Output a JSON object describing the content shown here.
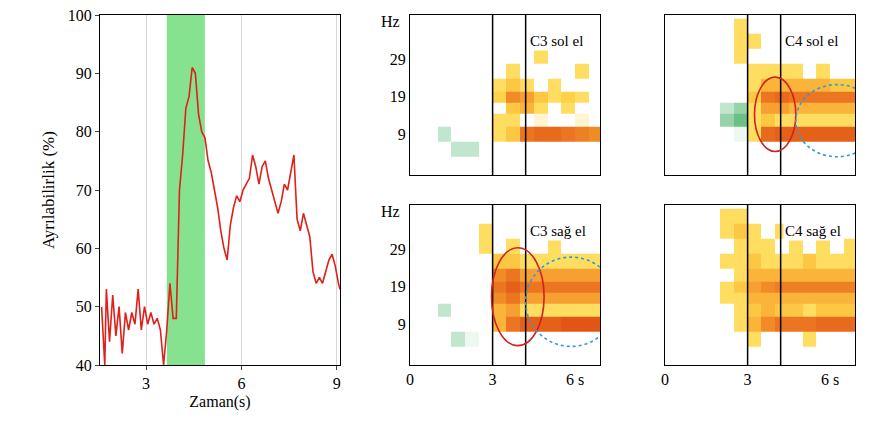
{
  "chart_data": [
    {
      "type": "line",
      "xlabel": "Zaman(s)",
      "ylabel": "Ayrılabilirlik (%)",
      "x": [
        1.6,
        1.7,
        1.75,
        1.85,
        1.95,
        2.05,
        2.15,
        2.25,
        2.35,
        2.45,
        2.55,
        2.65,
        2.75,
        2.85,
        2.95,
        3.05,
        3.15,
        3.25,
        3.35,
        3.45,
        3.55,
        3.65,
        3.75,
        3.85,
        3.95,
        4.05,
        4.15,
        4.25,
        4.35,
        4.45,
        4.55,
        4.65,
        4.75,
        4.85,
        4.95,
        5.05,
        5.15,
        5.25,
        5.35,
        5.45,
        5.55,
        5.65,
        5.75,
        5.85,
        5.95,
        6.05,
        6.15,
        6.25,
        6.35,
        6.45,
        6.55,
        6.65,
        6.75,
        6.85,
        6.95,
        7.05,
        7.15,
        7.25,
        7.35,
        7.45,
        7.55,
        7.65,
        7.75,
        7.85,
        7.95,
        8.05,
        8.15,
        8.25,
        8.35,
        8.45,
        8.55,
        8.65,
        8.75,
        8.85,
        8.95,
        9.05,
        9.1
      ],
      "values": [
        50,
        40,
        53,
        44,
        52,
        45,
        50,
        42,
        49,
        46,
        49,
        47,
        53,
        46,
        50,
        47,
        49,
        47,
        48,
        46,
        40,
        46,
        54,
        48,
        48,
        70,
        76,
        84,
        86,
        91,
        90,
        83,
        80,
        79,
        75,
        73,
        70,
        67,
        63,
        60,
        58,
        64,
        67,
        69,
        68,
        70,
        71,
        72,
        76,
        74,
        71,
        74,
        75,
        72,
        70,
        68,
        66,
        68,
        71,
        70,
        73,
        76,
        65,
        63,
        66,
        64,
        62,
        56,
        54,
        55,
        54,
        56,
        58,
        59,
        57,
        54,
        53
      ],
      "color": "#e0201a",
      "xlim": [
        1.55,
        9.1
      ],
      "xticks": [
        3,
        6,
        9
      ],
      "ylim": [
        40,
        100
      ],
      "yticks": [
        40,
        50,
        60,
        70,
        80,
        90,
        100
      ],
      "grid": true,
      "shaded": {
        "x": [
          3.65,
          4.85
        ],
        "color": "#86e28e"
      }
    },
    {
      "type": "heatmap",
      "title": "C3 sol el",
      "ylabel": "Hz",
      "tick_labels": "y",
      "x": [
        0.25,
        0.75,
        1.25,
        1.75,
        2.25,
        2.75,
        3.25,
        3.75,
        4.25,
        4.75,
        5.25,
        5.75,
        6.25,
        6.75
      ],
      "y": [
        1,
        5,
        9,
        13,
        16,
        19,
        22,
        26,
        30,
        34,
        38
      ],
      "z": [
        [
          0,
          0,
          0,
          0,
          0,
          0,
          0,
          0,
          0,
          0,
          0,
          0,
          0,
          0
        ],
        [
          0,
          0,
          0,
          -0.3,
          -0.3,
          0,
          0,
          0,
          0,
          0,
          0,
          0,
          0,
          0
        ],
        [
          0,
          0,
          -0.3,
          0,
          0,
          0,
          0.3,
          0.4,
          0.8,
          0.85,
          0.85,
          0.8,
          0.75,
          0.7
        ],
        [
          0,
          0,
          0,
          0,
          0,
          0,
          0.3,
          0.3,
          0,
          0.2,
          0,
          0,
          0.2,
          0
        ],
        [
          0,
          0,
          0,
          0,
          0,
          0,
          0,
          0.4,
          0.5,
          0.3,
          0,
          0.3,
          0,
          0
        ],
        [
          0,
          0,
          0,
          0,
          0,
          0,
          0.35,
          0.7,
          0.6,
          0.4,
          0.3,
          0.35,
          0.3,
          0
        ],
        [
          0,
          0,
          0,
          0,
          0,
          0,
          0.3,
          0.4,
          0.3,
          0,
          0.3,
          0,
          0,
          0
        ],
        [
          0,
          0,
          0,
          0,
          0,
          0,
          0,
          0.3,
          0,
          0,
          0,
          0,
          0.3,
          0
        ],
        [
          0,
          0,
          0,
          0,
          0,
          0,
          0,
          0,
          0,
          0.3,
          0,
          0,
          0,
          0
        ],
        [
          0,
          0,
          0,
          0,
          0,
          0,
          0,
          0,
          0,
          0,
          0,
          0,
          0,
          0
        ],
        [
          0,
          0,
          0,
          0,
          0,
          0,
          0,
          0,
          0,
          0,
          0,
          0,
          0,
          0
        ]
      ],
      "zlim": [
        -1,
        1
      ],
      "xlim": [
        0,
        6.9
      ],
      "ylim": [
        -2,
        41
      ],
      "yticks": [
        9,
        19,
        29
      ],
      "vlines": [
        3,
        4.2
      ]
    },
    {
      "type": "heatmap",
      "title": "C4 sol el",
      "tick_labels": false,
      "x": [
        0.25,
        0.75,
        1.25,
        1.75,
        2.25,
        2.75,
        3.25,
        3.75,
        4.25,
        4.75,
        5.25,
        5.75,
        6.25,
        6.75
      ],
      "y": [
        1,
        5,
        9,
        13,
        16,
        19,
        22,
        26,
        30,
        34,
        38
      ],
      "z": [
        [
          0,
          0,
          0,
          0,
          0,
          0,
          0,
          0,
          0,
          0,
          0,
          0,
          0,
          0
        ],
        [
          0,
          0,
          0,
          0,
          0,
          0,
          0,
          0,
          0,
          0,
          0,
          0,
          0,
          0
        ],
        [
          0,
          0,
          0,
          0,
          0,
          -0.2,
          0.3,
          0.85,
          0.9,
          0.9,
          0.9,
          0.9,
          0.9,
          0.9
        ],
        [
          0,
          0,
          0,
          0,
          -0.4,
          -0.5,
          0.3,
          0.4,
          0.3,
          0.3,
          0.3,
          0.3,
          0.3,
          0.3
        ],
        [
          0,
          0,
          0,
          0,
          -0.3,
          -0.4,
          0.3,
          0.6,
          0.6,
          0.5,
          0.5,
          0.5,
          0.5,
          0.5
        ],
        [
          0,
          0,
          0,
          0,
          0,
          0,
          0.4,
          0.8,
          0.85,
          0.8,
          0.8,
          0.8,
          0.8,
          0.8
        ],
        [
          0,
          0,
          0,
          0,
          0,
          0,
          0.3,
          0.5,
          0.5,
          0.5,
          0.5,
          0.5,
          0.4,
          0.4
        ],
        [
          0,
          0,
          0,
          0,
          0,
          0,
          0.3,
          0.3,
          0.3,
          0.3,
          0,
          0.3,
          0,
          0
        ],
        [
          0,
          0,
          0,
          0,
          0,
          0.3,
          0,
          0,
          0,
          0,
          0,
          0,
          0,
          0
        ],
        [
          0,
          0,
          0,
          0,
          0,
          0.3,
          0.3,
          0,
          0,
          0,
          0,
          0,
          0,
          0
        ],
        [
          0,
          0,
          0,
          0,
          0,
          0.3,
          0,
          0,
          0,
          0,
          0,
          0,
          0,
          0
        ]
      ],
      "zlim": [
        -1,
        1
      ],
      "xlim": [
        0,
        6.9
      ],
      "ylim": [
        -2,
        41
      ],
      "vlines": [
        3,
        4.2
      ],
      "regions": [
        {
          "x": [
            3.25,
            4.75
          ],
          "y": [
            4.3,
            24.3
          ],
          "color": "#d42020",
          "line_style": "solid"
        },
        {
          "x": [
            4.75,
            7.75
          ],
          "y": [
            2.9,
            22.3
          ],
          "color": "#3399dd",
          "line_style": "dot"
        }
      ]
    },
    {
      "type": "heatmap",
      "title": "C3 sağ el",
      "ylabel": "Hz",
      "x": [
        0.25,
        0.75,
        1.25,
        1.75,
        2.25,
        2.75,
        3.25,
        3.75,
        4.25,
        4.75,
        5.25,
        5.75,
        6.25,
        6.75
      ],
      "y": [
        1,
        5,
        9,
        13,
        16,
        19,
        22,
        26,
        30,
        34,
        38
      ],
      "z": [
        [
          0,
          0,
          0,
          0,
          0,
          0,
          0,
          0,
          0,
          0,
          0,
          0,
          0,
          0
        ],
        [
          0,
          0,
          0,
          -0.3,
          -0.2,
          0,
          0,
          0,
          0,
          0,
          0,
          0,
          0,
          0
        ],
        [
          0,
          0,
          0,
          0,
          0,
          0,
          0.5,
          0.8,
          0.9,
          0.9,
          0.9,
          0.95,
          0.95,
          0.95
        ],
        [
          0,
          0,
          -0.3,
          0,
          0,
          0,
          0.5,
          0.6,
          0.3,
          0.3,
          0.3,
          0.3,
          0.3,
          0.3
        ],
        [
          0,
          0,
          0,
          0,
          0,
          0,
          0.7,
          0.8,
          0.6,
          0.6,
          0.6,
          0.6,
          0.6,
          0.6
        ],
        [
          0,
          0,
          0,
          0,
          0,
          0,
          0.8,
          0.9,
          0.8,
          0.8,
          0.8,
          0.8,
          0.8,
          0.8
        ],
        [
          0,
          0,
          0,
          0,
          0,
          0,
          0.7,
          0.8,
          0.6,
          0.6,
          0.6,
          0.6,
          0.6,
          0.6
        ],
        [
          0,
          0,
          0,
          0,
          0,
          0,
          0.4,
          0.4,
          0.3,
          0.3,
          0.3,
          0.3,
          0.3,
          0.3
        ],
        [
          0,
          0,
          0,
          0,
          0,
          0.3,
          0,
          0.3,
          0,
          0,
          0.3,
          0,
          0,
          0
        ],
        [
          0,
          0,
          0,
          0,
          0,
          0.3,
          0,
          0,
          0,
          0,
          0,
          0,
          0,
          0
        ],
        [
          0,
          0,
          0,
          0,
          0,
          0,
          0,
          0,
          0,
          0,
          0,
          0,
          0,
          0
        ]
      ],
      "zlim": [
        -1,
        1
      ],
      "xlim": [
        0,
        6.9
      ],
      "ylim": [
        -2,
        41
      ],
      "xticks": [
        0,
        3,
        {
          "value": 6,
          "label": "6 s"
        }
      ],
      "yticks": [
        9,
        19,
        29
      ],
      "vlines": [
        3,
        4.2
      ],
      "regions": [
        {
          "x": [
            2.96,
            4.87
          ],
          "y": [
            3.2,
            29.5
          ],
          "color": "#d42020",
          "line_style": "solid"
        },
        {
          "x": [
            4.2,
            7.5
          ],
          "y": [
            3,
            27
          ],
          "color": "#3399dd",
          "line_style": "dot"
        }
      ]
    },
    {
      "type": "heatmap",
      "title": "C4 sağ el",
      "tick_labels": "x",
      "x": [
        0.25,
        0.75,
        1.25,
        1.75,
        2.25,
        2.75,
        3.25,
        3.75,
        4.25,
        4.75,
        5.25,
        5.75,
        6.25,
        6.75
      ],
      "y": [
        1,
        5,
        9,
        13,
        16,
        19,
        22,
        26,
        30,
        34,
        38
      ],
      "z": [
        [
          0,
          0,
          0,
          0,
          0,
          0,
          0,
          0,
          0,
          0,
          0,
          0,
          0,
          0
        ],
        [
          0,
          0,
          0,
          0,
          0,
          0,
          0.3,
          0,
          0,
          0,
          0.3,
          0,
          0,
          0
        ],
        [
          0,
          0,
          0,
          0,
          0,
          0.3,
          0.5,
          0.7,
          0.8,
          0.8,
          0.8,
          0.85,
          0.85,
          0.85
        ],
        [
          0,
          0,
          0,
          0,
          0,
          0.3,
          0.4,
          0.5,
          0.4,
          0.4,
          0.3,
          0.4,
          0.4,
          0.4
        ],
        [
          0,
          0,
          0,
          0,
          0.3,
          0.3,
          0.5,
          0.5,
          0.5,
          0.5,
          0.5,
          0.5,
          0.5,
          0.5
        ],
        [
          0,
          0,
          0,
          0,
          0.3,
          0.4,
          0.6,
          0.7,
          0.75,
          0.75,
          0.75,
          0.75,
          0.75,
          0.75
        ],
        [
          0,
          0,
          0,
          0,
          0,
          0.3,
          0.5,
          0.5,
          0.5,
          0.5,
          0.5,
          0.5,
          0.5,
          0.5
        ],
        [
          0,
          0,
          0,
          0,
          0.3,
          0.3,
          0.4,
          0.3,
          0.3,
          0.3,
          0.4,
          0.3,
          0.3,
          0.3
        ],
        [
          0,
          0,
          0,
          0,
          0,
          0.3,
          0.3,
          0.3,
          0,
          0.3,
          0,
          0.3,
          0,
          0.3
        ],
        [
          0,
          0,
          0,
          0,
          0.3,
          0.4,
          0.3,
          0,
          0.3,
          0,
          0,
          0,
          0,
          0
        ],
        [
          0,
          0,
          0,
          0,
          0.3,
          0.3,
          0,
          0,
          0,
          0,
          0,
          0,
          0,
          0
        ]
      ],
      "zlim": [
        -1,
        1
      ],
      "xlim": [
        0,
        6.9
      ],
      "ylim": [
        -2,
        41
      ],
      "xticks": [
        0,
        3,
        {
          "value": 6,
          "label": "6 s"
        }
      ],
      "vlines": [
        3,
        4.2
      ]
    }
  ]
}
